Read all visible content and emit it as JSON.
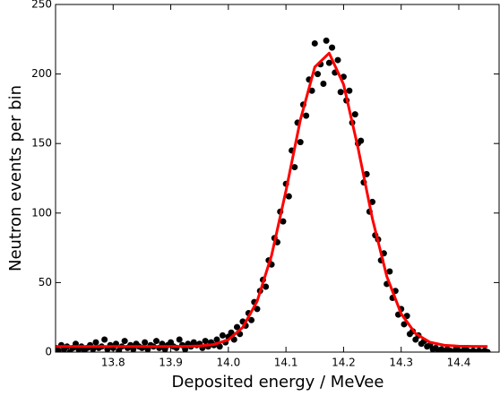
{
  "chart_data": {
    "type": "scatter",
    "xlabel": "Deposited energy / MeVee",
    "ylabel": "Neutron events per bin",
    "xlim": [
      13.7,
      14.47
    ],
    "ylim": [
      0,
      250
    ],
    "xticks": [
      13.8,
      13.9,
      {
        "value": 14.0,
        "label": "14.0"
      },
      14.1,
      14.2,
      14.3,
      14.4
    ],
    "yticks": [
      0,
      50,
      100,
      150,
      200,
      250
    ],
    "series": [
      {
        "type": "scatter",
        "color": "#000000",
        "x": [
          13.7,
          13.705,
          13.71,
          13.715,
          13.72,
          13.725,
          13.73,
          13.735,
          13.74,
          13.745,
          13.75,
          13.755,
          13.76,
          13.765,
          13.77,
          13.775,
          13.78,
          13.785,
          13.79,
          13.795,
          13.8,
          13.805,
          13.81,
          13.815,
          13.82,
          13.825,
          13.83,
          13.835,
          13.84,
          13.845,
          13.85,
          13.855,
          13.86,
          13.865,
          13.87,
          13.875,
          13.88,
          13.885,
          13.89,
          13.895,
          13.9,
          13.905,
          13.91,
          13.915,
          13.92,
          13.925,
          13.93,
          13.935,
          13.94,
          13.945,
          13.95,
          13.955,
          13.96,
          13.965,
          13.97,
          13.975,
          13.98,
          13.985,
          13.99,
          13.995,
          14.0,
          14.005,
          14.01,
          14.015,
          14.02,
          14.025,
          14.03,
          14.035,
          14.04,
          14.045,
          14.05,
          14.055,
          14.06,
          14.065,
          14.07,
          14.075,
          14.08,
          14.085,
          14.09,
          14.095,
          14.1,
          14.105,
          14.11,
          14.115,
          14.12,
          14.125,
          14.13,
          14.135,
          14.14,
          14.145,
          14.15,
          14.155,
          14.16,
          14.165,
          14.17,
          14.175,
          14.18,
          14.185,
          14.19,
          14.195,
          14.2,
          14.205,
          14.21,
          14.215,
          14.22,
          14.225,
          14.23,
          14.235,
          14.24,
          14.245,
          14.25,
          14.255,
          14.26,
          14.265,
          14.27,
          14.275,
          14.28,
          14.285,
          14.29,
          14.295,
          14.3,
          14.305,
          14.31,
          14.315,
          14.32,
          14.325,
          14.33,
          14.335,
          14.34,
          14.345,
          14.35,
          14.355,
          14.36,
          14.365,
          14.37,
          14.375,
          14.38,
          14.385,
          14.39,
          14.395,
          14.4,
          14.405,
          14.41,
          14.415,
          14.42,
          14.425,
          14.43,
          14.435,
          14.44,
          14.445,
          14.45
        ],
        "values": [
          3,
          1,
          5,
          2,
          4,
          0,
          3,
          6,
          2,
          4,
          1,
          3,
          5,
          2,
          7,
          3,
          4,
          9,
          2,
          5,
          3,
          6,
          1,
          4,
          8,
          3,
          5,
          2,
          6,
          4,
          3,
          7,
          2,
          5,
          4,
          8,
          3,
          6,
          2,
          5,
          7,
          4,
          3,
          9,
          5,
          2,
          6,
          4,
          7,
          5,
          6,
          3,
          8,
          4,
          7,
          5,
          9,
          4,
          12,
          7,
          11,
          14,
          9,
          18,
          13,
          22,
          19,
          28,
          23,
          36,
          31,
          44,
          52,
          47,
          66,
          63,
          82,
          79,
          101,
          94,
          121,
          112,
          145,
          133,
          165,
          151,
          178,
          170,
          196,
          188,
          222,
          200,
          207,
          193,
          224,
          208,
          219,
          201,
          210,
          187,
          198,
          181,
          188,
          165,
          171,
          150,
          152,
          122,
          128,
          101,
          108,
          84,
          81,
          66,
          71,
          49,
          58,
          39,
          44,
          27,
          31,
          20,
          26,
          13,
          15,
          9,
          12,
          6,
          8,
          4,
          5,
          2,
          3,
          1,
          2,
          0,
          2,
          1,
          0,
          2,
          1,
          0,
          2,
          1,
          0,
          1,
          0,
          1,
          0,
          1,
          0
        ]
      },
      {
        "type": "line",
        "color": "#ff0000",
        "x": [
          13.7,
          13.725,
          13.75,
          13.775,
          13.8,
          13.825,
          13.85,
          13.875,
          13.9,
          13.925,
          13.95,
          13.975,
          14.0,
          14.025,
          14.05,
          14.075,
          14.1,
          14.125,
          14.15,
          14.175,
          14.2,
          14.225,
          14.25,
          14.275,
          14.3,
          14.325,
          14.35,
          14.375,
          14.4,
          14.425,
          14.45
        ],
        "values": [
          4,
          4,
          4,
          4,
          4,
          4,
          4,
          4,
          4,
          4.1,
          4.4,
          5.5,
          8.9,
          17.8,
          36.6,
          69.5,
          116,
          167,
          205,
          215,
          192.5,
          147,
          96,
          54.5,
          27.5,
          13.3,
          7.1,
          4.9,
          4.3,
          4.1,
          4
        ]
      }
    ]
  }
}
